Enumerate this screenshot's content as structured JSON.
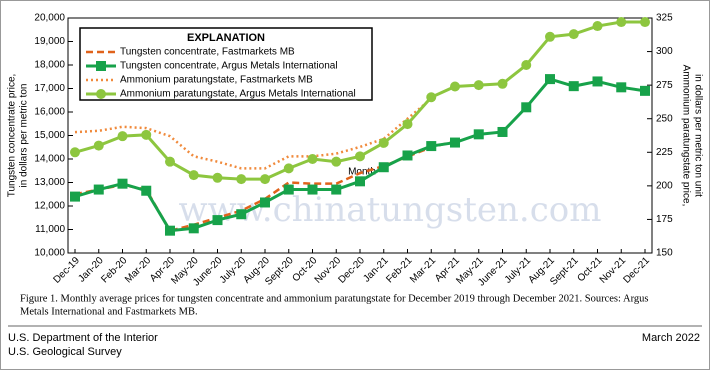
{
  "chart_data": {
    "type": "line",
    "x_label": "Month",
    "y_label": [
      "Tungsten concentrate price,",
      "in dollars per metric ton"
    ],
    "y2_label": [
      "Ammonium paratungstate price,",
      "in dollars per metric ton unit"
    ],
    "legend_title": "EXPLANATION",
    "legend": "upper left",
    "watermark": "www.chinatungsten.com",
    "categories": [
      "Dec-19",
      "Jan-20",
      "Feb-20",
      "Mar-20",
      "Apr-20",
      "May-20",
      "June-20",
      "July-20",
      "Aug-20",
      "Sept-20",
      "Oct-20",
      "Nov-20",
      "Dec-20",
      "Jan-21",
      "Feb-21",
      "Mar-21",
      "Apr-21",
      "May-21",
      "June-21",
      "July-21",
      "Aug-21",
      "Sept-21",
      "Oct-21",
      "Nov-21",
      "Dec-21"
    ],
    "ylim": [
      10000,
      20000
    ],
    "yticks": [
      {
        "value": 10000,
        "label": "10,000"
      },
      {
        "value": 11000,
        "label": "11,000"
      },
      {
        "value": 12000,
        "label": "12,000"
      },
      {
        "value": 13000,
        "label": "13,000"
      },
      {
        "value": 14000,
        "label": "14,000"
      },
      {
        "value": 15000,
        "label": "15,000"
      },
      {
        "value": 16000,
        "label": "16,000"
      },
      {
        "value": 17000,
        "label": "17,000"
      },
      {
        "value": 18000,
        "label": "18,000"
      },
      {
        "value": 19000,
        "label": "19,000"
      },
      {
        "value": 20000,
        "label": "20,000"
      }
    ],
    "y2lim": [
      150,
      325
    ],
    "y2ticks": [
      150,
      175,
      200,
      225,
      250,
      275,
      300,
      325
    ],
    "series": [
      {
        "name": "Tungsten concentrate, Fastmarkets MB",
        "color": "#e0621b",
        "dash": "dashed",
        "marker": "none",
        "values": [
          12500,
          12700,
          12900,
          12700,
          10950,
          11200,
          11500,
          11800,
          12300,
          13000,
          12950,
          12950,
          13400,
          13700,
          14100,
          14500,
          14750,
          null,
          null,
          null,
          null,
          null,
          null,
          null,
          null
        ]
      },
      {
        "name": "Tungsten concentrate, Argus Metals International",
        "color": "#17a24a",
        "dash": "solid",
        "marker": "square",
        "values": [
          12400,
          12700,
          12950,
          12650,
          10950,
          11050,
          11400,
          11650,
          12150,
          12700,
          12700,
          12700,
          13050,
          13650,
          14150,
          14550,
          14700,
          15050,
          15150,
          16200,
          17400,
          17100,
          17300,
          17050,
          16900
        ]
      },
      {
        "name": "Ammonium paratungstate, Fastmarkets MB",
        "color": "#f08a3c",
        "dash": "dotted",
        "marker": "none",
        "axis": "y2",
        "values": [
          240,
          241,
          244,
          243,
          237,
          222,
          218,
          213,
          213,
          222,
          222,
          224,
          229,
          235,
          250,
          265,
          null,
          null,
          null,
          null,
          null,
          null,
          null,
          null,
          null
        ]
      },
      {
        "name": "Ammonium paratungstate, Argus Metals International",
        "color": "#8dc63f",
        "dash": "solid",
        "marker": "circle",
        "axis": "y2",
        "values": [
          225,
          230,
          237,
          238,
          218,
          208,
          206,
          205,
          205,
          213,
          220,
          218,
          222,
          232,
          246,
          266,
          274,
          275,
          276,
          290,
          311,
          313,
          319,
          322,
          322
        ]
      }
    ]
  },
  "caption": [
    "Figure 1. Monthly average prices for tungsten concentrate and ammonium paratungstate for December 2019 through December 2021. Sources: Argus",
    "Metals International and Fastmarkets MB."
  ],
  "footer": {
    "left": [
      "U.S. Department of the Interior",
      "U.S. Geological Survey"
    ],
    "right": "March  2022"
  }
}
